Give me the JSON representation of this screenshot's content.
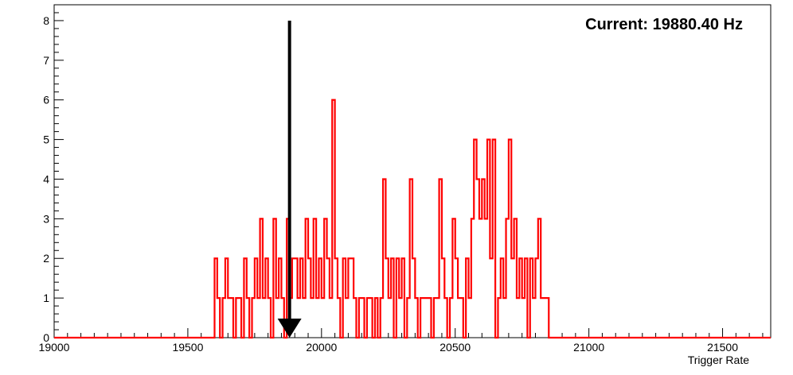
{
  "chart_data": {
    "type": "histogram",
    "title": "",
    "xlabel": "Trigger Rate",
    "ylabel": "",
    "xlim": [
      19000,
      21680
    ],
    "ylim": [
      0,
      8.4
    ],
    "x_ticks": [
      19000,
      19500,
      20000,
      20500,
      21000,
      21500
    ],
    "y_ticks": [
      0,
      1,
      2,
      3,
      4,
      5,
      6,
      7,
      8
    ],
    "bin_width": 10,
    "grid": false,
    "series": [
      {
        "color": "#ff0000",
        "bins": [
          [
            19600,
            2
          ],
          [
            19610,
            1
          ],
          [
            19620,
            0
          ],
          [
            19630,
            1
          ],
          [
            19640,
            2
          ],
          [
            19650,
            1
          ],
          [
            19660,
            1
          ],
          [
            19670,
            0
          ],
          [
            19680,
            1
          ],
          [
            19690,
            1
          ],
          [
            19700,
            0
          ],
          [
            19710,
            2
          ],
          [
            19720,
            1
          ],
          [
            19730,
            0
          ],
          [
            19740,
            1
          ],
          [
            19750,
            2
          ],
          [
            19760,
            1
          ],
          [
            19770,
            3
          ],
          [
            19780,
            1
          ],
          [
            19790,
            2
          ],
          [
            19800,
            1
          ],
          [
            19810,
            0
          ],
          [
            19820,
            3
          ],
          [
            19830,
            1
          ],
          [
            19840,
            2
          ],
          [
            19850,
            1
          ],
          [
            19860,
            0
          ],
          [
            19870,
            3
          ],
          [
            19880,
            1
          ],
          [
            19890,
            2
          ],
          [
            19900,
            2
          ],
          [
            19910,
            1
          ],
          [
            19920,
            2
          ],
          [
            19930,
            1
          ],
          [
            19940,
            3
          ],
          [
            19950,
            2
          ],
          [
            19960,
            1
          ],
          [
            19970,
            3
          ],
          [
            19980,
            1
          ],
          [
            19990,
            2
          ],
          [
            20000,
            1
          ],
          [
            20010,
            3
          ],
          [
            20020,
            2
          ],
          [
            20030,
            1
          ],
          [
            20040,
            6
          ],
          [
            20050,
            2
          ],
          [
            20060,
            1
          ],
          [
            20070,
            0
          ],
          [
            20080,
            2
          ],
          [
            20090,
            1
          ],
          [
            20100,
            2
          ],
          [
            20110,
            2
          ],
          [
            20120,
            1
          ],
          [
            20130,
            0
          ],
          [
            20140,
            1
          ],
          [
            20150,
            1
          ],
          [
            20160,
            0
          ],
          [
            20170,
            1
          ],
          [
            20180,
            1
          ],
          [
            20190,
            0
          ],
          [
            20200,
            1
          ],
          [
            20210,
            0
          ],
          [
            20220,
            1
          ],
          [
            20230,
            4
          ],
          [
            20240,
            2
          ],
          [
            20250,
            1
          ],
          [
            20260,
            2
          ],
          [
            20270,
            0
          ],
          [
            20280,
            2
          ],
          [
            20290,
            1
          ],
          [
            20300,
            2
          ],
          [
            20310,
            0
          ],
          [
            20320,
            1
          ],
          [
            20330,
            4
          ],
          [
            20340,
            2
          ],
          [
            20350,
            1
          ],
          [
            20360,
            0
          ],
          [
            20370,
            1
          ],
          [
            20380,
            1
          ],
          [
            20390,
            1
          ],
          [
            20400,
            1
          ],
          [
            20410,
            0
          ],
          [
            20420,
            1
          ],
          [
            20430,
            1
          ],
          [
            20440,
            4
          ],
          [
            20450,
            2
          ],
          [
            20460,
            1
          ],
          [
            20470,
            0
          ],
          [
            20480,
            1
          ],
          [
            20490,
            3
          ],
          [
            20500,
            2
          ],
          [
            20510,
            1
          ],
          [
            20520,
            1
          ],
          [
            20530,
            0
          ],
          [
            20540,
            2
          ],
          [
            20550,
            1
          ],
          [
            20560,
            3
          ],
          [
            20570,
            5
          ],
          [
            20580,
            4
          ],
          [
            20590,
            3
          ],
          [
            20600,
            4
          ],
          [
            20610,
            3
          ],
          [
            20620,
            5
          ],
          [
            20630,
            2
          ],
          [
            20640,
            5
          ],
          [
            20650,
            0
          ],
          [
            20660,
            1
          ],
          [
            20670,
            2
          ],
          [
            20680,
            1
          ],
          [
            20690,
            3
          ],
          [
            20700,
            5
          ],
          [
            20710,
            2
          ],
          [
            20720,
            3
          ],
          [
            20730,
            1
          ],
          [
            20740,
            2
          ],
          [
            20750,
            1
          ],
          [
            20760,
            2
          ],
          [
            20770,
            0
          ],
          [
            20780,
            2
          ],
          [
            20790,
            1
          ],
          [
            20800,
            2
          ],
          [
            20810,
            3
          ],
          [
            20820,
            1
          ],
          [
            20830,
            1
          ],
          [
            20840,
            1
          ],
          [
            20850,
            0
          ]
        ]
      }
    ],
    "markers": [
      {
        "type": "arrow",
        "x": 19880.4,
        "y_from": 8,
        "y_to": 0,
        "color": "#000000"
      }
    ],
    "annotations": [
      {
        "text": "Current: 19880.40 Hz",
        "position": "top-right"
      }
    ]
  }
}
